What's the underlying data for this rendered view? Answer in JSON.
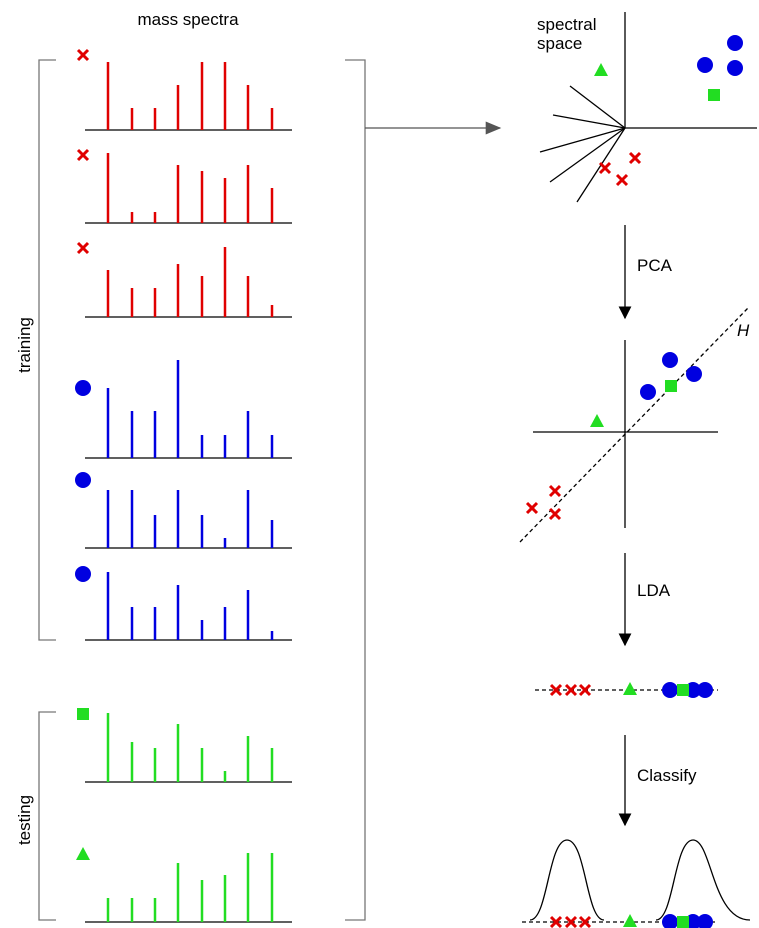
{
  "title": "mass spectra",
  "spectral_space": [
    "spectral",
    "space"
  ],
  "training": "training",
  "testing": "testing",
  "steps": [
    "PCA",
    "LDA",
    "Classify"
  ],
  "hyperplane": "H",
  "spectra": [
    {
      "color": "#e00000",
      "peaks": [
        68,
        22,
        22,
        45,
        68,
        68,
        45,
        22
      ]
    },
    {
      "color": "#e00000",
      "peaks": [
        70,
        11,
        11,
        58,
        52,
        45,
        58,
        35
      ]
    },
    {
      "color": "#e00000",
      "peaks": [
        47,
        29,
        29,
        53,
        41,
        70,
        41,
        12
      ]
    },
    {
      "color": "#0000e0",
      "peaks": [
        70,
        47,
        47,
        98,
        23,
        23,
        47,
        23
      ]
    },
    {
      "color": "#0000e0",
      "peaks": [
        58,
        58,
        33,
        58,
        33,
        10,
        58,
        28
      ]
    },
    {
      "color": "#0000e0",
      "peaks": [
        68,
        33,
        33,
        55,
        20,
        33,
        50,
        9
      ]
    },
    {
      "color": "#22dd22",
      "peaks": [
        69,
        40,
        34,
        58,
        34,
        11,
        46,
        34
      ]
    },
    {
      "color": "#22dd22",
      "peaks": [
        24,
        24,
        24,
        59,
        42,
        47,
        69,
        69
      ]
    }
  ]
}
